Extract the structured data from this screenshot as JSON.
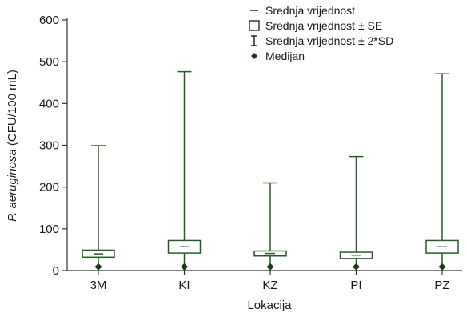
{
  "chart_data": {
    "type": "box",
    "title": "",
    "xlabel": "Lokacija",
    "ylabel_italic": "P. aeruginosa",
    "ylabel_rest": " (CFU/100 mL)",
    "ylim": [
      0,
      600
    ],
    "yticks": [
      0,
      100,
      200,
      300,
      400,
      500,
      600
    ],
    "categories": [
      "3M",
      "KI",
      "KZ",
      "PI",
      "PZ"
    ],
    "series": [
      {
        "category": "3M",
        "mean": 40,
        "se_low": 32,
        "se_high": 49,
        "sd_low": 0,
        "sd_high": 299,
        "median": 9
      },
      {
        "category": "KI",
        "mean": 57,
        "se_low": 42,
        "se_high": 72,
        "sd_low": 0,
        "sd_high": 476,
        "median": 9
      },
      {
        "category": "KZ",
        "mean": 41,
        "se_low": 35,
        "se_high": 47,
        "sd_low": 0,
        "sd_high": 210,
        "median": 9
      },
      {
        "category": "PI",
        "mean": 37,
        "se_low": 29,
        "se_high": 44,
        "sd_low": 0,
        "sd_high": 273,
        "median": 9
      },
      {
        "category": "PZ",
        "mean": 57,
        "se_low": 42,
        "se_high": 72,
        "sd_low": 0,
        "sd_high": 471,
        "median": 9
      }
    ],
    "legend": {
      "position": "top-right",
      "items": [
        {
          "symbol": "dash",
          "label": "Srednja vrijednost"
        },
        {
          "symbol": "box",
          "label": "Srednja vrijednost ± SE"
        },
        {
          "symbol": "whisker",
          "label": "Srednja vrijednost ± 2*SD"
        },
        {
          "symbol": "diamond",
          "label": "Medijan"
        }
      ]
    },
    "grid": false,
    "colors": {
      "line": "#2a5a2a",
      "axis": "#333333",
      "median": "#1a3a1a",
      "text": "#1a1a1a"
    }
  }
}
